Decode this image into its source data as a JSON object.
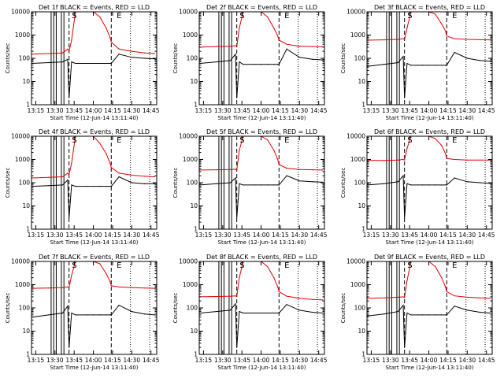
{
  "shared": {
    "xlabel": "Start Time (12-Jun-14 13:11:40)",
    "ylabel": "Counts/sec",
    "x_range": [
      "13:11:40",
      "14:49:30"
    ],
    "x_ticks": [
      "13:15",
      "13:30",
      "13:45",
      "14:00",
      "14:15",
      "14:30",
      "14:45"
    ],
    "y_scale": "log",
    "y_range": [
      1,
      10000
    ],
    "y_ticks": [
      "1",
      "10",
      "100",
      "1000",
      "10000"
    ],
    "colors": {
      "events": "#000000",
      "lld": "#e00000"
    },
    "solid_markers": [
      "13:27",
      "13:29",
      "13:31",
      "13:35",
      "13:37"
    ],
    "dashed_markers": [
      "13:41",
      "14:14"
    ],
    "dotted_markers": [
      "14:29",
      "14:44"
    ],
    "flag_glyphs": [
      {
        "glyph": "S",
        "time": "13:42"
      },
      {
        "glyph": "E",
        "time": "14:17"
      }
    ]
  },
  "chart_data": [
    {
      "type": "line",
      "title": "Det 1f BLACK = Events, RED = LLD",
      "x": [
        "13:12",
        "13:25",
        "13:36",
        "13:40",
        "13:41",
        "13:43",
        "13:46",
        "13:55",
        "14:00",
        "14:05",
        "14:10",
        "14:13",
        "14:14",
        "14:20",
        "14:30",
        "14:40",
        "14:48"
      ],
      "series": [
        {
          "values": [
            60,
            65,
            70,
            90,
            2,
            70,
            60,
            60,
            60,
            60,
            60,
            60,
            60,
            150,
            110,
            100,
            95
          ]
        },
        {
          "values": [
            150,
            160,
            170,
            250,
            200,
            600,
            10000,
            10000,
            10000,
            6000,
            2000,
            800,
            500,
            250,
            200,
            170,
            160
          ]
        }
      ]
    },
    {
      "type": "line",
      "title": "Det 2f BLACK = Events, RED = LLD",
      "x": [
        "13:12",
        "13:25",
        "13:36",
        "13:40",
        "13:41",
        "13:43",
        "13:46",
        "13:55",
        "14:00",
        "14:05",
        "14:10",
        "14:13",
        "14:14",
        "14:20",
        "14:30",
        "14:40",
        "14:48"
      ],
      "series": [
        {
          "values": [
            60,
            70,
            80,
            150,
            2,
            70,
            55,
            55,
            55,
            55,
            55,
            55,
            55,
            250,
            110,
            90,
            85
          ]
        },
        {
          "values": [
            300,
            320,
            330,
            350,
            320,
            2000,
            10000,
            10000,
            10000,
            6000,
            2000,
            900,
            600,
            400,
            330,
            320,
            310
          ]
        }
      ]
    },
    {
      "type": "line",
      "title": "Det 3f BLACK = Events, RED = LLD",
      "x": [
        "13:12",
        "13:25",
        "13:36",
        "13:40",
        "13:41",
        "13:43",
        "13:46",
        "13:55",
        "14:00",
        "14:05",
        "14:10",
        "14:13",
        "14:14",
        "14:20",
        "14:30",
        "14:40",
        "14:48"
      ],
      "series": [
        {
          "values": [
            45,
            55,
            65,
            120,
            2,
            60,
            50,
            50,
            50,
            50,
            50,
            50,
            50,
            180,
            100,
            80,
            75
          ]
        },
        {
          "values": [
            600,
            620,
            650,
            700,
            650,
            2000,
            10000,
            10000,
            10000,
            8000,
            3000,
            1500,
            900,
            700,
            650,
            630,
            620
          ]
        }
      ]
    },
    {
      "type": "line",
      "title": "Det 4f BLACK = Events, RED = LLD",
      "x": [
        "13:12",
        "13:25",
        "13:36",
        "13:40",
        "13:41",
        "13:43",
        "13:46",
        "13:55",
        "14:00",
        "14:05",
        "14:10",
        "14:13",
        "14:14",
        "14:20",
        "14:30",
        "14:40",
        "14:48"
      ],
      "series": [
        {
          "values": [
            70,
            75,
            80,
            130,
            3,
            80,
            70,
            70,
            70,
            70,
            70,
            70,
            70,
            180,
            100,
            90,
            90
          ]
        },
        {
          "values": [
            160,
            170,
            180,
            260,
            220,
            700,
            10000,
            10000,
            10000,
            5000,
            1800,
            700,
            450,
            260,
            210,
            190,
            180
          ]
        }
      ]
    },
    {
      "type": "line",
      "title": "Det 5f BLACK = Events, RED = LLD",
      "x": [
        "13:12",
        "13:25",
        "13:36",
        "13:40",
        "13:41",
        "13:43",
        "13:46",
        "13:55",
        "14:00",
        "14:05",
        "14:10",
        "14:13",
        "14:14",
        "14:20",
        "14:30",
        "14:40",
        "14:48"
      ],
      "series": [
        {
          "values": [
            80,
            90,
            100,
            160,
            3,
            90,
            80,
            80,
            80,
            80,
            80,
            80,
            80,
            200,
            120,
            110,
            105
          ]
        },
        {
          "values": [
            350,
            360,
            370,
            380,
            350,
            2500,
            10000,
            10000,
            10000,
            7000,
            2500,
            1000,
            600,
            420,
            370,
            360,
            350
          ]
        }
      ]
    },
    {
      "type": "line",
      "title": "Det 6f BLACK = Events, RED = LLD",
      "x": [
        "13:12",
        "13:25",
        "13:36",
        "13:40",
        "13:41",
        "13:43",
        "13:46",
        "13:55",
        "14:00",
        "14:05",
        "14:10",
        "14:13",
        "14:14",
        "14:20",
        "14:30",
        "14:40",
        "14:48"
      ],
      "series": [
        {
          "values": [
            80,
            90,
            110,
            200,
            3,
            90,
            80,
            80,
            80,
            80,
            80,
            80,
            80,
            160,
            110,
            100,
            95
          ]
        },
        {
          "values": [
            900,
            900,
            950,
            1000,
            950,
            3000,
            10000,
            10000,
            10000,
            8000,
            4000,
            1800,
            1100,
            1000,
            950,
            950,
            940
          ]
        }
      ]
    },
    {
      "type": "line",
      "title": "Det 7f BLACK = Events, RED = LLD",
      "x": [
        "13:12",
        "13:25",
        "13:36",
        "13:40",
        "13:41",
        "13:43",
        "13:46",
        "13:55",
        "14:00",
        "14:05",
        "14:10",
        "14:13",
        "14:14",
        "14:20",
        "14:30",
        "14:40",
        "14:48"
      ],
      "series": [
        {
          "values": [
            40,
            50,
            60,
            120,
            2,
            60,
            50,
            50,
            50,
            50,
            50,
            50,
            50,
            130,
            70,
            55,
            50
          ]
        },
        {
          "values": [
            700,
            720,
            750,
            800,
            750,
            2500,
            10000,
            10000,
            10000,
            8000,
            3000,
            1400,
            900,
            800,
            750,
            720,
            700
          ]
        }
      ]
    },
    {
      "type": "line",
      "title": "Det 8f BLACK = Events, RED = LLD",
      "x": [
        "13:12",
        "13:25",
        "13:36",
        "13:40",
        "13:41",
        "13:43",
        "13:46",
        "13:55",
        "14:00",
        "14:05",
        "14:10",
        "14:13",
        "14:14",
        "14:20",
        "14:30",
        "14:40",
        "14:48"
      ],
      "series": [
        {
          "values": [
            60,
            70,
            80,
            150,
            2,
            70,
            60,
            60,
            60,
            60,
            60,
            60,
            60,
            140,
            80,
            65,
            60
          ]
        },
        {
          "values": [
            300,
            310,
            320,
            330,
            310,
            2000,
            10000,
            10000,
            10000,
            6000,
            2000,
            800,
            500,
            320,
            260,
            230,
            220
          ]
        }
      ]
    },
    {
      "type": "line",
      "title": "Det 9f BLACK = Events, RED = LLD",
      "x": [
        "13:12",
        "13:25",
        "13:36",
        "13:40",
        "13:41",
        "13:43",
        "13:46",
        "13:55",
        "14:00",
        "14:05",
        "14:10",
        "14:13",
        "14:14",
        "14:20",
        "14:30",
        "14:40",
        "14:48"
      ],
      "series": [
        {
          "values": [
            45,
            55,
            70,
            130,
            2,
            60,
            50,
            50,
            50,
            50,
            50,
            50,
            50,
            120,
            80,
            65,
            60
          ]
        },
        {
          "values": [
            260,
            270,
            290,
            300,
            280,
            1500,
            10000,
            10000,
            10000,
            6000,
            2000,
            800,
            500,
            330,
            290,
            270,
            260
          ]
        }
      ]
    }
  ]
}
